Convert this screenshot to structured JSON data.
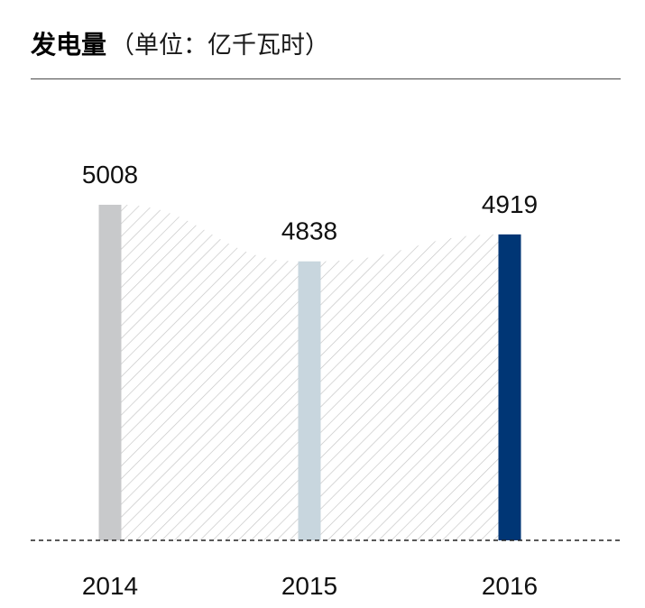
{
  "header": {
    "title": "发电量",
    "unit": "（单位：亿千瓦时）"
  },
  "chart_data": {
    "type": "bar",
    "categories": [
      "2014",
      "2015",
      "2016"
    ],
    "values": [
      5008,
      4838,
      4919
    ],
    "ylim": [
      4000,
      5100
    ],
    "grid": false,
    "legend": "none",
    "colors": [
      "#c8c9cb",
      "#c8d6de",
      "#003675"
    ],
    "connector_color": "#c4c4c4",
    "axis_line_color": "#222222"
  }
}
